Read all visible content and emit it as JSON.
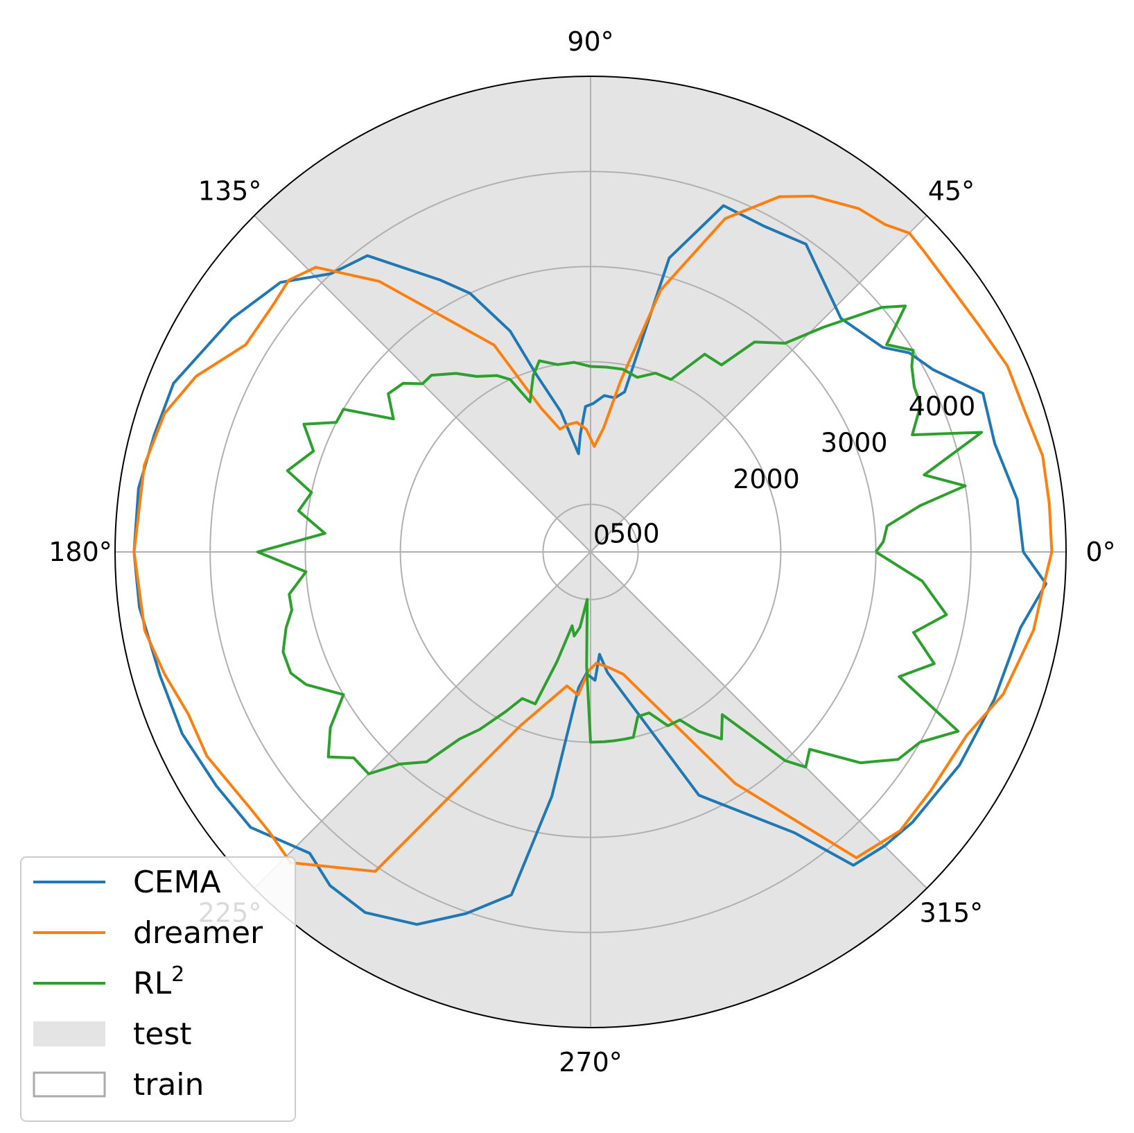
{
  "chart_data": {
    "type": "line",
    "projection": "polar",
    "angle_unit": "degrees",
    "theta_tick_labels": [
      "0°",
      "45°",
      "90°",
      "135°",
      "180°",
      "225°",
      "270°",
      "315°"
    ],
    "theta_ticks": [
      0,
      45,
      90,
      135,
      180,
      225,
      270,
      315
    ],
    "radial_tick_labels": [
      "0",
      "500",
      "2000",
      "3000",
      "4000"
    ],
    "radial_ticks": [
      0,
      500,
      2000,
      3000,
      4000
    ],
    "rlim": [
      0,
      5000
    ],
    "grid": true,
    "shaded_regions": [
      {
        "name": "test",
        "theta_ranges": [
          [
            45,
            135
          ],
          [
            225,
            315
          ]
        ],
        "r_max": 5000,
        "color": "#e4e4e4"
      }
    ],
    "legend": {
      "placement": "lower-left",
      "entries": [
        {
          "label": "CEMA",
          "kind": "line",
          "color": "#1f77b4"
        },
        {
          "label": "dreamer",
          "kind": "line",
          "color": "#ff7f0e"
        },
        {
          "label": "RL",
          "superscript": "2",
          "kind": "line",
          "color": "#2ca02c"
        },
        {
          "label": "test",
          "kind": "patch-filled",
          "color": "#e4e4e4"
        },
        {
          "label": "train",
          "kind": "patch-outline",
          "color": "#aaaaaa"
        }
      ]
    },
    "series": [
      {
        "name": "CEMA",
        "color": "#1f77b4",
        "points": [
          [
            0,
            4550
          ],
          [
            7,
            4520
          ],
          [
            15,
            4400
          ],
          [
            22,
            4450
          ],
          [
            28,
            4080
          ],
          [
            32,
            3950
          ],
          [
            35,
            3750
          ],
          [
            43,
            3600
          ],
          [
            55,
            3950
          ],
          [
            62,
            3880
          ],
          [
            69,
            3900
          ],
          [
            75,
            3200
          ],
          [
            78,
            1720
          ],
          [
            81,
            1640
          ],
          [
            85,
            1650
          ],
          [
            89,
            1560
          ],
          [
            92,
            1530
          ],
          [
            95,
            1240
          ],
          [
            97,
            1040
          ],
          [
            102,
            1510
          ],
          [
            107,
            1950
          ],
          [
            110,
            2470
          ],
          [
            115,
            3000
          ],
          [
            119,
            3270
          ],
          [
            127,
            3900
          ],
          [
            133,
            4000
          ],
          [
            139,
            4320
          ],
          [
            147,
            4500
          ],
          [
            158,
            4730
          ],
          [
            165,
            4750
          ],
          [
            172,
            4800
          ],
          [
            180,
            4800
          ],
          [
            187,
            4780
          ],
          [
            196,
            4710
          ],
          [
            204,
            4700
          ],
          [
            212,
            4640
          ],
          [
            219,
            4600
          ],
          [
            227,
            4330
          ],
          [
            232,
            4450
          ],
          [
            238,
            4470
          ],
          [
            245,
            4320
          ],
          [
            251,
            4020
          ],
          [
            257,
            3700
          ],
          [
            261,
            2600
          ],
          [
            265,
            1430
          ],
          [
            268,
            1280
          ],
          [
            272,
            1350
          ],
          [
            275,
            1080
          ],
          [
            278,
            1280
          ],
          [
            294,
            2800
          ],
          [
            306,
            3650
          ],
          [
            310,
            4300
          ],
          [
            315,
            4370
          ],
          [
            320,
            4420
          ],
          [
            330,
            4480
          ],
          [
            340,
            4520
          ],
          [
            350,
            4590
          ],
          [
            356,
            4800
          ],
          [
            360,
            4550
          ]
        ]
      },
      {
        "name": "dreamer",
        "color": "#ff7f0e",
        "points": [
          [
            0,
            4850
          ],
          [
            6,
            4850
          ],
          [
            12,
            4860
          ],
          [
            18,
            4800
          ],
          [
            24,
            4800
          ],
          [
            30,
            4730
          ],
          [
            36,
            4700
          ],
          [
            42,
            4720
          ],
          [
            45,
            4740
          ],
          [
            48,
            4630
          ],
          [
            52,
            4580
          ],
          [
            58,
            4410
          ],
          [
            62,
            4230
          ],
          [
            68,
            3780
          ],
          [
            75,
            2850
          ],
          [
            80,
            1830
          ],
          [
            84,
            1310
          ],
          [
            88,
            1110
          ],
          [
            92,
            1290
          ],
          [
            96,
            1370
          ],
          [
            100,
            1360
          ],
          [
            104,
            1330
          ],
          [
            109,
            1600
          ],
          [
            115,
            2400
          ],
          [
            128,
            3610
          ],
          [
            134,
            4160
          ],
          [
            138,
            4270
          ],
          [
            142,
            4230
          ],
          [
            149,
            4230
          ],
          [
            156,
            4540
          ],
          [
            162,
            4710
          ],
          [
            169,
            4780
          ],
          [
            180,
            4800
          ],
          [
            190,
            4760
          ],
          [
            196,
            4660
          ],
          [
            202,
            4560
          ],
          [
            208,
            4570
          ],
          [
            217,
            4480
          ],
          [
            221,
            4480
          ],
          [
            226,
            4540
          ],
          [
            236,
            4050
          ],
          [
            248,
            1970
          ],
          [
            260,
            1430
          ],
          [
            265,
            1510
          ],
          [
            269,
            1250
          ],
          [
            273,
            1170
          ],
          [
            279,
            1230
          ],
          [
            285,
            1330
          ],
          [
            290,
            1570
          ],
          [
            302,
            2870
          ],
          [
            311,
            4260
          ],
          [
            318,
            4380
          ],
          [
            325,
            4370
          ],
          [
            334,
            4400
          ],
          [
            341,
            4590
          ],
          [
            350,
            4730
          ],
          [
            356,
            4780
          ],
          [
            360,
            4850
          ]
        ]
      },
      {
        "name": "RL²",
        "color": "#2ca02c",
        "points": [
          [
            0,
            3000
          ],
          [
            2,
            3080
          ],
          [
            5,
            3130
          ],
          [
            8,
            3500
          ],
          [
            10,
            4000
          ],
          [
            13,
            3600
          ],
          [
            17,
            4300
          ],
          [
            20,
            3600
          ],
          [
            24,
            3800
          ],
          [
            27,
            3820
          ],
          [
            30,
            3900
          ],
          [
            32,
            4000
          ],
          [
            35,
            3800
          ],
          [
            38,
            4200
          ],
          [
            40,
            4000
          ],
          [
            44,
            3400
          ],
          [
            47,
            3000
          ],
          [
            52,
            2800
          ],
          [
            55,
            2400
          ],
          [
            60,
            2400
          ],
          [
            65,
            2000
          ],
          [
            70,
            2000
          ],
          [
            75,
            1900
          ],
          [
            80,
            1950
          ],
          [
            85,
            1950
          ],
          [
            90,
            1950
          ],
          [
            95,
            2000
          ],
          [
            100,
            2000
          ],
          [
            105,
            2080
          ],
          [
            108,
            1950
          ],
          [
            112,
            1700
          ],
          [
            115,
            2000
          ],
          [
            118,
            2100
          ],
          [
            123,
            2200
          ],
          [
            127,
            2350
          ],
          [
            132,
            2500
          ],
          [
            135,
            2500
          ],
          [
            138,
            2650
          ],
          [
            142,
            2700
          ],
          [
            146,
            2500
          ],
          [
            150,
            3000
          ],
          [
            153,
            3000
          ],
          [
            156,
            3300
          ],
          [
            160,
            3100
          ],
          [
            165,
            3300
          ],
          [
            168,
            3000
          ],
          [
            172,
            3100
          ],
          [
            176,
            2800
          ],
          [
            180,
            3500
          ],
          [
            184,
            3000
          ],
          [
            188,
            3200
          ],
          [
            191,
            3200
          ],
          [
            194,
            3300
          ],
          [
            198,
            3400
          ],
          [
            202,
            3400
          ],
          [
            205,
            3300
          ],
          [
            210,
            3000
          ],
          [
            214,
            3300
          ],
          [
            218,
            3500
          ],
          [
            221,
            3300
          ],
          [
            225,
            3300
          ],
          [
            228,
            3000
          ],
          [
            232,
            2800
          ],
          [
            235,
            2400
          ],
          [
            238,
            2200
          ],
          [
            242,
            1900
          ],
          [
            245,
            1700
          ],
          [
            250,
            1700
          ],
          [
            253,
            1200
          ],
          [
            256,
            800
          ],
          [
            259,
            900
          ],
          [
            262,
            800
          ],
          [
            266,
            500
          ],
          [
            268,
            1200
          ],
          [
            270,
            2000
          ],
          [
            274,
            2000
          ],
          [
            277,
            2000
          ],
          [
            280,
            2000
          ],
          [
            283,
            2000
          ],
          [
            286,
            1800
          ],
          [
            290,
            1800
          ],
          [
            294,
            2000
          ],
          [
            298,
            2000
          ],
          [
            301,
            2200
          ],
          [
            305,
            2400
          ],
          [
            309,
            2200
          ],
          [
            313,
            3000
          ],
          [
            315,
            3200
          ],
          [
            318,
            3100
          ],
          [
            322,
            3600
          ],
          [
            326,
            3900
          ],
          [
            330,
            4000
          ],
          [
            334,
            4300
          ],
          [
            338,
            3500
          ],
          [
            342,
            3800
          ],
          [
            346,
            3500
          ],
          [
            350,
            3800
          ],
          [
            355,
            3500
          ],
          [
            360,
            3000
          ]
        ]
      }
    ]
  }
}
